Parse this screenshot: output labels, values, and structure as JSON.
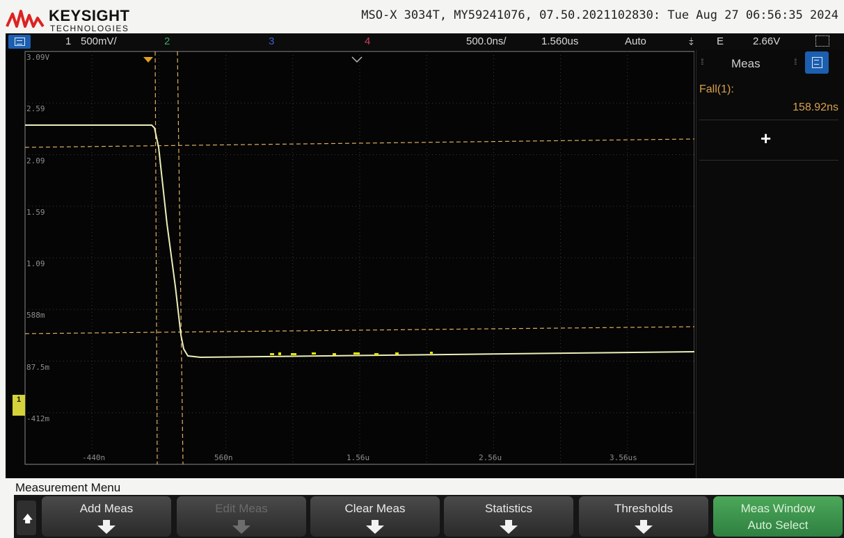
{
  "header": {
    "brand": "KEYSIGHT",
    "brand_sub": "TECHNOLOGIES",
    "instrument_info": "MSO-X 3034T, MY59241076, 07.50.2021102830: Tue Aug 27 06:56:35 2024"
  },
  "status_bar": {
    "ch1_number": "1",
    "ch1_scale": "500mV/",
    "ch2_number": "2",
    "ch3_number": "3",
    "ch4_number": "4",
    "timebase": "500.0ns/",
    "time_position": "1.560us",
    "trigger_mode": "Auto",
    "trigger_edge_symbol": "⤈",
    "trigger_source": "E",
    "trigger_level": "2.66V"
  },
  "plot": {
    "y_labels": [
      "3.09V",
      "2.59",
      "2.09",
      "1.59",
      "1.09",
      "588m",
      "87.5m",
      "-412m"
    ],
    "x_labels": [
      "-440n",
      "560n",
      "1.56u",
      "2.56u",
      "3.56us"
    ],
    "ground_marker": "1",
    "trace_color": "#e9ecb4",
    "cursor_color": "#e0b060",
    "grid_color": "#3a3a3a"
  },
  "measure_panel": {
    "title": "Meas",
    "items": [
      {
        "label": "Fall(1):",
        "value": "158.92ns"
      }
    ],
    "add_symbol": "+"
  },
  "softkeys": {
    "menu_title": "Measurement Menu",
    "back_symbol": "🡅",
    "keys": [
      {
        "label": "Add Meas",
        "state": "enabled"
      },
      {
        "label": "Edit Meas",
        "state": "disabled"
      },
      {
        "label": "Clear Meas",
        "state": "enabled"
      },
      {
        "label": "Statistics",
        "state": "enabled"
      },
      {
        "label": "Thresholds",
        "state": "enabled"
      },
      {
        "label": "Meas Window",
        "label2": "Auto Select",
        "state": "active"
      }
    ]
  }
}
